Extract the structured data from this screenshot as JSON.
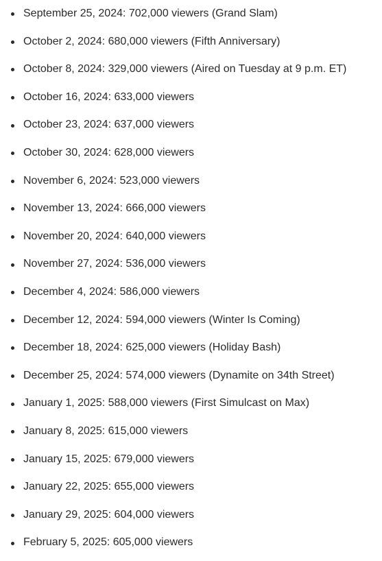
{
  "viewership": {
    "items": [
      "September 25, 2024: 702,000 viewers (Grand Slam)",
      "October 2, 2024: 680,000 viewers (Fifth Anniversary)",
      "October 8, 2024: 329,000 viewers (Aired on Tuesday at 9 p.m. ET)",
      "October 16, 2024: 633,000 viewers",
      "October 23, 2024: 637,000 viewers",
      "October 30, 2024: 628,000 viewers",
      "November 6, 2024: 523,000 viewers",
      "November 13, 2024: 666,000 viewers",
      "November 20, 2024: 640,000 viewers",
      "November 27, 2024: 536,000 viewers",
      "December 4, 2024: 586,000 viewers",
      "December 12, 2024: 594,000 viewers (Winter Is Coming)",
      "December 18, 2024: 625,000 viewers (Holiday Bash)",
      "December 25, 2024: 574,000 viewers (Dynamite on 34th Street)",
      "January 1, 2025: 588,000 viewers (First Simulcast on Max)",
      "January 8, 2025: 615,000 viewers",
      "January 15, 2025: 679,000 viewers",
      "January 22, 2025: 655,000 viewers",
      "January 29, 2025: 604,000 viewers",
      "February 5, 2025: 605,000 viewers"
    ]
  }
}
